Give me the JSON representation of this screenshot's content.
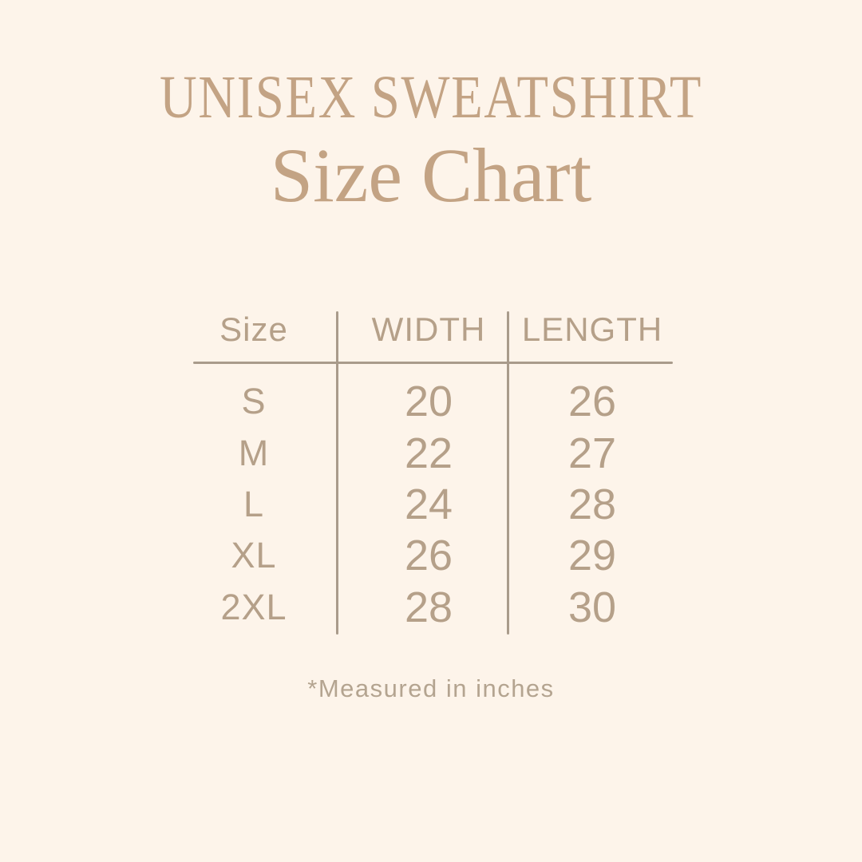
{
  "header": {
    "product_title": "UNISEX SWEATSHIRT",
    "page_title": "Size Chart"
  },
  "table": {
    "headers": [
      "Size",
      "WIDTH",
      "LENGTH"
    ],
    "rows": [
      {
        "size": "S",
        "width": "20",
        "length": "26"
      },
      {
        "size": "M",
        "width": "22",
        "length": "27"
      },
      {
        "size": "L",
        "width": "24",
        "length": "28"
      },
      {
        "size": "XL",
        "width": "26",
        "length": "29"
      },
      {
        "size": "2XL",
        "width": "28",
        "length": "30"
      }
    ]
  },
  "footnote": "*Measured in inches",
  "colors": {
    "background": "#fdf4ea",
    "title": "#c3a384",
    "table_text": "#b5a089",
    "line": "#a99b8b",
    "footnote": "#b4a490"
  },
  "chart_data": {
    "type": "table",
    "title": "UNISEX SWEATSHIRT Size Chart",
    "columns": [
      "Size",
      "WIDTH",
      "LENGTH"
    ],
    "rows": [
      [
        "S",
        20,
        26
      ],
      [
        "M",
        22,
        27
      ],
      [
        "L",
        24,
        28
      ],
      [
        "XL",
        26,
        29
      ],
      [
        "2XL",
        28,
        30
      ]
    ],
    "units": "inches"
  }
}
